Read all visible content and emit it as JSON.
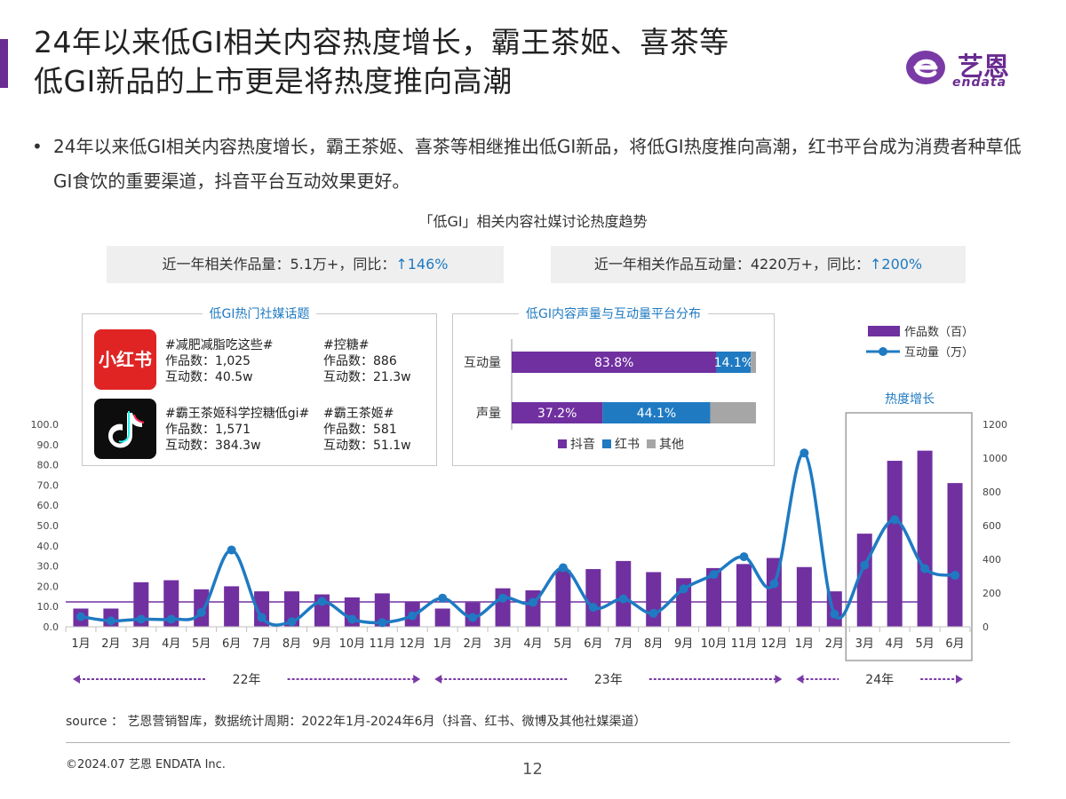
{
  "header": {
    "title_line1": "24年以来低GI相关内容热度增长，霸王茶姬、喜茶等",
    "title_line2": "低GI新品的上市更是将热度推向高潮",
    "logo_text": "艺恩",
    "logo_sub": "endata"
  },
  "bullet": {
    "dot": "•",
    "text": "24年以来低GI相关内容热度增长，霸王茶姬、喜茶等相继推出低GI新品，将低GI热度推向高潮，红书平台成为消费者种草低GI食饮的重要渠道，抖音平台互动效果更好。"
  },
  "chart_title": "「低GI」相关内容社媒讨论热度趋势",
  "stats": {
    "left_label": "近一年相关作品量：5.1万+，同比：",
    "left_value": "↑146%",
    "right_label": "近一年相关作品互动量：4220万+，同比：",
    "right_value": "↑200%"
  },
  "topics_panel": {
    "title": "低GI热门社媒话题",
    "xhs_icon_text": "小红书",
    "topics": [
      {
        "name": "#减肥减脂吃这些#",
        "works": "作品数：1,025",
        "interactions": "互动数：40.5w"
      },
      {
        "name": "#控糖#",
        "works": "作品数：886",
        "interactions": "互动数：21.3w"
      },
      {
        "name": "#霸王茶姬科学控糖低gi#",
        "works": "作品数：1,571",
        "interactions": "互动数：384.3w"
      },
      {
        "name": "#霸王茶姬#",
        "works": "作品数：581",
        "interactions": "互动数：51.1w"
      }
    ]
  },
  "chart_data": [
    {
      "type": "bar",
      "title": "低GI内容声量与互动量平台分布",
      "orientation": "horizontal",
      "stacked": true,
      "percent": true,
      "categories": [
        "互动量",
        "声量"
      ],
      "series": [
        {
          "name": "抖音",
          "values": [
            83.8,
            37.2
          ],
          "labels": [
            "83.8%",
            "37.2%"
          ],
          "color": "#7030a0"
        },
        {
          "name": "红书",
          "values": [
            14.1,
            44.1
          ],
          "labels": [
            "14.1%",
            "44.1%"
          ],
          "color": "#1f7ac2"
        },
        {
          "name": "其他",
          "values": [
            2.1,
            18.7
          ],
          "labels": [
            "",
            ""
          ],
          "color": "#a6a6a6"
        }
      ],
      "legend": "bottom"
    },
    {
      "type": "bar",
      "title": "",
      "categories": [
        "1月",
        "2月",
        "3月",
        "4月",
        "5月",
        "6月",
        "7月",
        "8月",
        "9月",
        "10月",
        "11月",
        "12月",
        "1月",
        "2月",
        "3月",
        "4月",
        "5月",
        "6月",
        "7月",
        "8月",
        "9月",
        "10月",
        "11月",
        "12月",
        "1月",
        "2月",
        "3月",
        "4月",
        "5月",
        "6月"
      ],
      "year_groups": [
        {
          "label": "22年",
          "start": 0,
          "end": 11
        },
        {
          "label": "23年",
          "start": 12,
          "end": 23
        },
        {
          "label": "24年",
          "start": 24,
          "end": 29
        }
      ],
      "series": [
        {
          "name": "作品数（百）",
          "type": "bar",
          "axis": "left",
          "color": "#7030a0",
          "values": [
            9,
            9,
            22,
            23,
            18.5,
            20,
            17.5,
            17.5,
            16,
            14.5,
            16.5,
            12.5,
            9,
            12,
            19,
            18,
            28,
            28.5,
            32.5,
            27,
            24,
            29,
            31,
            34,
            29.5,
            17.5,
            46,
            82,
            87,
            71
          ]
        },
        {
          "name": "互动量（万）",
          "type": "line",
          "axis": "right",
          "color": "#1f7ac2",
          "values": [
            60,
            35,
            45,
            45,
            85,
            455,
            55,
            30,
            150,
            45,
            25,
            65,
            170,
            55,
            170,
            145,
            350,
            115,
            165,
            80,
            225,
            310,
            415,
            255,
            1030,
            75,
            365,
            635,
            345,
            305
          ]
        }
      ],
      "yleft": {
        "range": [
          0,
          100
        ],
        "ticks": [
          "0.0",
          "10.0",
          "20.0",
          "30.0",
          "40.0",
          "50.0",
          "60.0",
          "70.0",
          "80.0",
          "90.0",
          "100.0"
        ]
      },
      "yright": {
        "range": [
          0,
          1200
        ],
        "ticks": [
          "0",
          "200",
          "400",
          "600",
          "800",
          "1000",
          "1200"
        ]
      },
      "annotation": "热度增长",
      "legend": "top-right"
    }
  ],
  "platform_legend": {
    "douyin": "抖音",
    "xhs": "红书",
    "other": "其他"
  },
  "source": "source ： 艺恩营销智库，数据统计周期：2022年1月-2024年6月（抖音、红书、微博及其他社媒渠道）",
  "footer": {
    "copyright": "©2024.07  艺恩 ENDATA Inc.",
    "page": "12"
  }
}
